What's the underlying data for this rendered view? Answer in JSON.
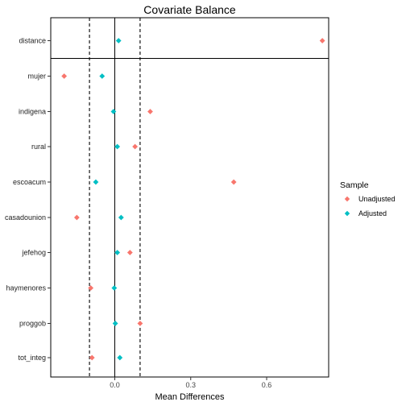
{
  "chart_data": {
    "type": "scatter",
    "title": "Covariate Balance",
    "xlabel": "Mean Differences",
    "ylabel": "",
    "xlim": [
      -0.253,
      0.845
    ],
    "xticks": [
      0.0,
      0.3,
      0.6
    ],
    "xtick_labels": [
      "0.0",
      "0.3",
      "0.6"
    ],
    "reference_lines": {
      "solid": 0.0,
      "dashed": [
        -0.1,
        0.1
      ]
    },
    "categories": [
      "distance",
      "mujer",
      "indigena",
      "rural",
      "escoacum",
      "casadounion",
      "jefehog",
      "haymenores",
      "proggob",
      "tot_integ"
    ],
    "series": [
      {
        "name": "Unadjusted",
        "color": "#F8766D",
        "values": [
          0.82,
          -0.2,
          0.14,
          0.08,
          0.47,
          -0.15,
          0.06,
          -0.095,
          0.1,
          -0.09
        ]
      },
      {
        "name": "Adjusted",
        "color": "#00BFC4",
        "values": [
          0.015,
          -0.05,
          -0.005,
          0.01,
          -0.075,
          0.025,
          0.01,
          -0.002,
          0.002,
          0.02
        ]
      }
    ],
    "legend": {
      "title": "Sample",
      "placement": "right"
    },
    "grid": false
  }
}
